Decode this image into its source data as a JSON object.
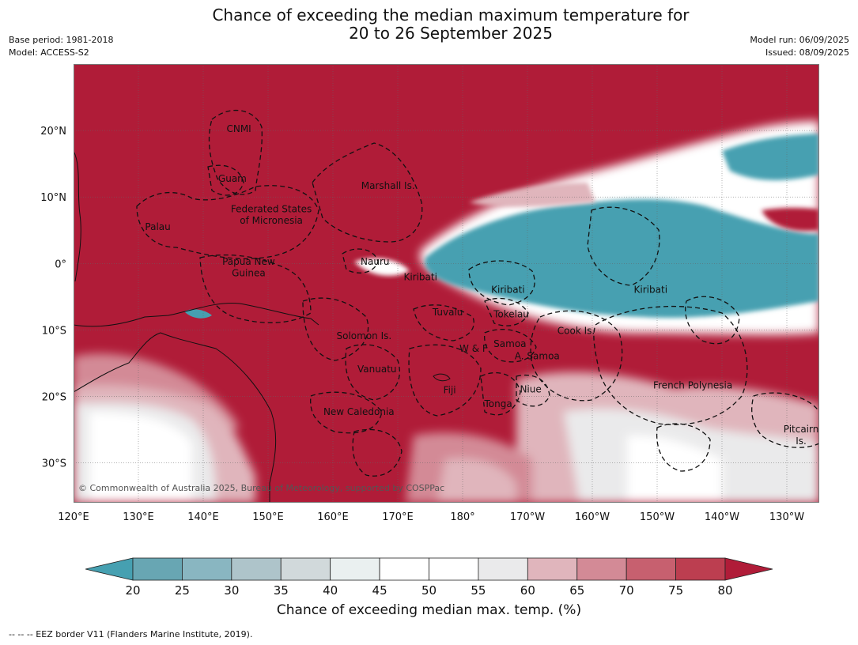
{
  "title": {
    "line1": "Chance of exceeding the median maximum temperature for",
    "line2": "20 to 26 September 2025"
  },
  "meta_left": {
    "base_period": "Base period: 1981-2018",
    "model": "Model: ACCESS-S2"
  },
  "meta_right": {
    "model_run": "Model run: 06/09/2025",
    "issued": "Issued: 08/09/2025"
  },
  "map": {
    "lon_range": [
      120,
      235
    ],
    "lat_range": [
      -36,
      30
    ],
    "lon_ticks": [
      "120°E",
      "130°E",
      "140°E",
      "150°E",
      "160°E",
      "170°E",
      "180°",
      "170°W",
      "160°W",
      "150°W",
      "140°W",
      "130°W"
    ],
    "lat_ticks": [
      "20°N",
      "10°N",
      "0°",
      "10°S",
      "20°S",
      "30°S"
    ],
    "copyright": "© Commonwealth of Australia 2025, Bureau of Meteorology, supported by COSPPac",
    "labels": [
      {
        "text": "CNMI",
        "lon": 145.5,
        "lat": 19.8
      },
      {
        "text": "Guam",
        "lon": 144.5,
        "lat": 12.3
      },
      {
        "text": "Marshall Is.",
        "lon": 168.5,
        "lat": 11.2
      },
      {
        "text": "Federated States",
        "lon": 150.5,
        "lat": 7.7
      },
      {
        "text": "of Micronesia",
        "lon": 150.5,
        "lat": 6.0
      },
      {
        "text": "Palau",
        "lon": 133,
        "lat": 5.0
      },
      {
        "text": "Nauru",
        "lon": 166.5,
        "lat": -0.2
      },
      {
        "text": "Papua New",
        "lon": 147,
        "lat": -0.2
      },
      {
        "text": "Guinea",
        "lon": 147,
        "lat": -1.9
      },
      {
        "text": "Kiribati",
        "lon": 173.5,
        "lat": -2.5
      },
      {
        "text": "Kiribati",
        "lon": -173,
        "lat": -4.4
      },
      {
        "text": "Kiribati",
        "lon": -151,
        "lat": -4.4
      },
      {
        "text": "Tuvalu",
        "lon": 177.7,
        "lat": -7.8
      },
      {
        "text": "Tokelau",
        "lon": -172.5,
        "lat": -8.1
      },
      {
        "text": "Cook Is.",
        "lon": -162.5,
        "lat": -10.6
      },
      {
        "text": "Solomon Is.",
        "lon": 164.8,
        "lat": -11.4
      },
      {
        "text": "W & F",
        "lon": -178.3,
        "lat": -13.3
      },
      {
        "text": "Samoa",
        "lon": -172.7,
        "lat": -12.6
      },
      {
        "text": "A. Samoa",
        "lon": -168.5,
        "lat": -14.4
      },
      {
        "text": "Vanuatu",
        "lon": 166.8,
        "lat": -16.4
      },
      {
        "text": "French Polynesia",
        "lon": -144.5,
        "lat": -18.8
      },
      {
        "text": "Fiji",
        "lon": 178,
        "lat": -19.5
      },
      {
        "text": "Niue",
        "lon": -169.5,
        "lat": -19.4
      },
      {
        "text": "Tonga",
        "lon": -174.5,
        "lat": -21.6
      },
      {
        "text": "New Caledonia",
        "lon": 164,
        "lat": -22.8
      },
      {
        "text": "Pitcairn",
        "lon": -127.8,
        "lat": -25.4
      },
      {
        "text": "Is.",
        "lon": -127.8,
        "lat": -27.2
      }
    ]
  },
  "legend": {
    "label": "Chance of exceeding median max. temp. (%)",
    "ticks": [
      "20",
      "25",
      "30",
      "35",
      "40",
      "45",
      "50",
      "55",
      "60",
      "65",
      "70",
      "75",
      "80"
    ],
    "colors": [
      "#68a6b3",
      "#89b6c1",
      "#aec4ca",
      "#d1d9db",
      "#eaf0f0",
      "#ffffff",
      "#ffffff",
      "#eaeaeb",
      "#e0b5bc",
      "#d38a96",
      "#c7606f",
      "#bc3e50"
    ],
    "low_color": "#46a0b1",
    "high_color": "#b01c38"
  },
  "footnote": "-- -- -- EEZ border V11 (Flanders Marine Institute, 2019).",
  "colors": {
    "warm": "#b01c38",
    "cool": "#46a0b1"
  }
}
